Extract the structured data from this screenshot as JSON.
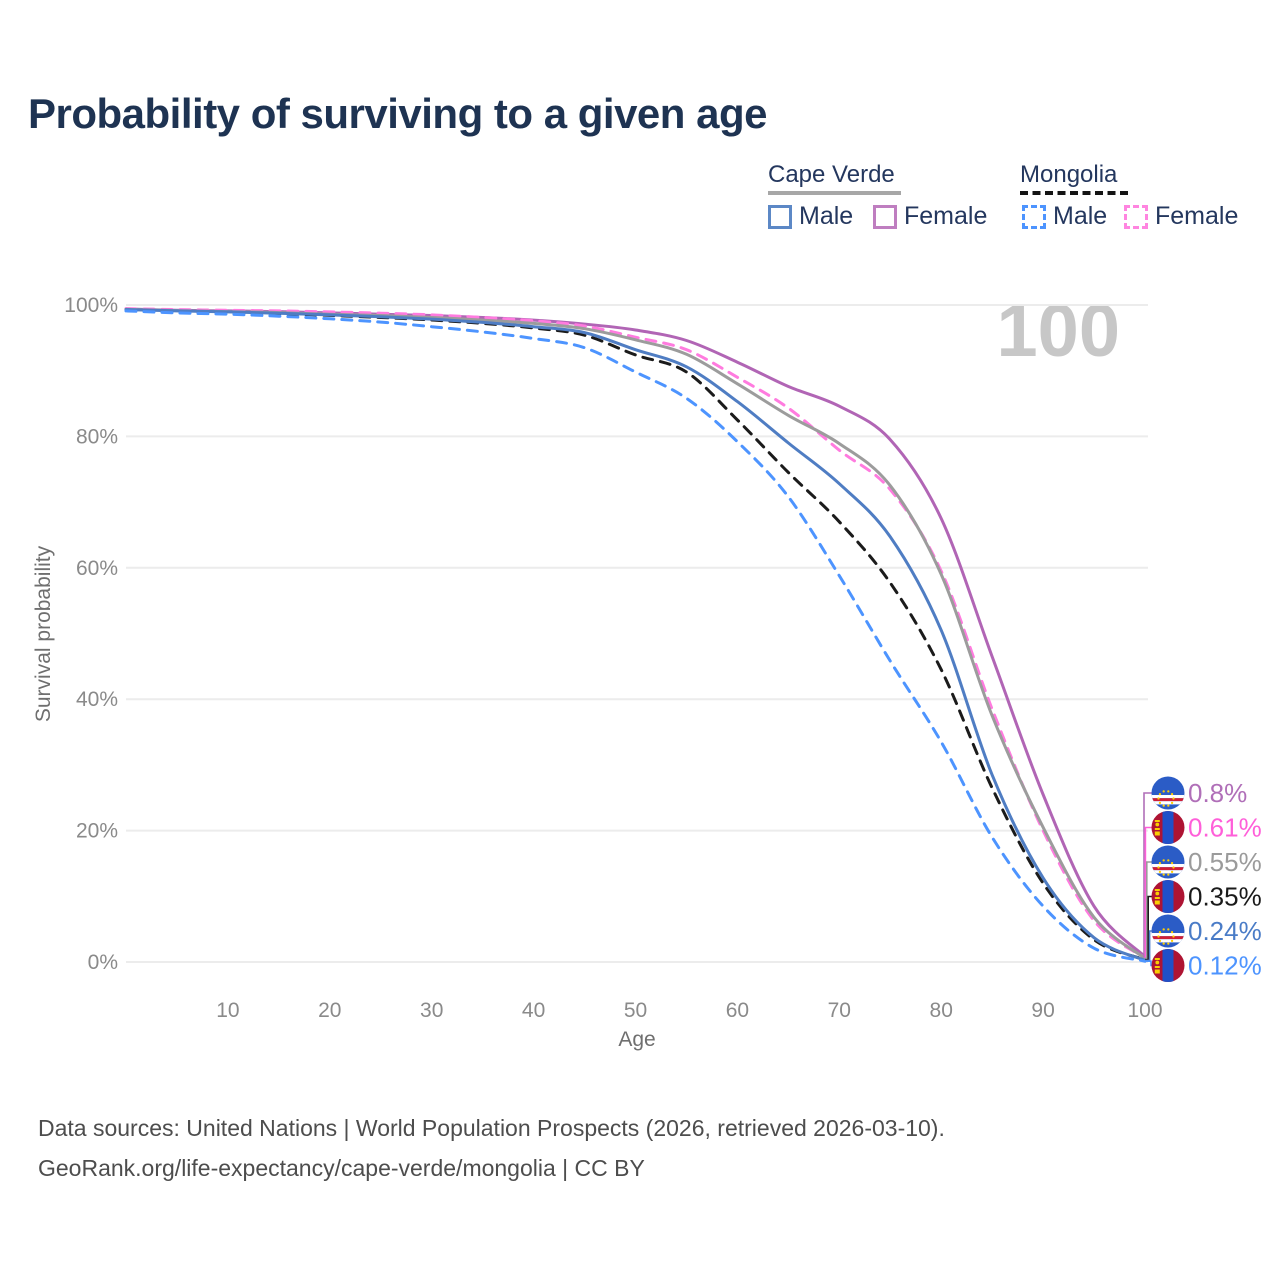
{
  "page": {
    "title": "Probability of surviving to a given age"
  },
  "watermark": "100",
  "legend": {
    "cape_verde": {
      "title": "Cape Verde",
      "style": "solid",
      "underline_color": "#a7a7a7",
      "male_label": "Male",
      "female_label": "Female",
      "male_color": "#5c88c6",
      "female_color": "#bf7ec0"
    },
    "mongolia": {
      "title": "Mongolia",
      "style": "dashed",
      "underline_color": "#141414",
      "male_label": "Male",
      "female_label": "Female",
      "male_color": "#4d94ff",
      "female_color": "#ff85e0"
    }
  },
  "axes": {
    "x_title": "Age",
    "y_title": "Survival probability",
    "x_ticks": [
      {
        "label": "10",
        "value": 10
      },
      {
        "label": "20",
        "value": 20
      },
      {
        "label": "30",
        "value": 30
      },
      {
        "label": "40",
        "value": 40
      },
      {
        "label": "50",
        "value": 50
      },
      {
        "label": "60",
        "value": 60
      },
      {
        "label": "70",
        "value": 70
      },
      {
        "label": "80",
        "value": 80
      },
      {
        "label": "90",
        "value": 90
      },
      {
        "label": "100",
        "value": 100
      }
    ],
    "y_ticks": [
      {
        "label": "0%",
        "value": 0
      },
      {
        "label": "20%",
        "value": 20
      },
      {
        "label": "40%",
        "value": 40
      },
      {
        "label": "60%",
        "value": 60
      },
      {
        "label": "80%",
        "value": 80
      },
      {
        "label": "100%",
        "value": 100
      }
    ]
  },
  "chart_data": {
    "type": "line",
    "title": "Probability of surviving to a given age",
    "xlabel": "Age",
    "ylabel": "Survival probability",
    "xlim": [
      0,
      100
    ],
    "ylim": [
      0,
      100
    ],
    "grid": true,
    "legend_position": "top-right",
    "x": [
      0,
      5,
      10,
      15,
      20,
      25,
      30,
      35,
      40,
      45,
      50,
      55,
      60,
      65,
      70,
      75,
      80,
      85,
      90,
      95,
      100
    ],
    "series": [
      {
        "name": "Cape Verde Female",
        "country": "Cape Verde",
        "sex": "Female",
        "color": "#b165b5",
        "label_color": "#b06fb8",
        "dash": "solid",
        "flag": "cape-verde",
        "end_label": "0.8%",
        "values": [
          99.4,
          99.2,
          99.1,
          99.0,
          98.8,
          98.6,
          98.4,
          98.1,
          97.7,
          97.1,
          96.2,
          94.6,
          91.3,
          87.6,
          84.6,
          79.5,
          67.5,
          46.5,
          25.5,
          8.5,
          0.8
        ]
      },
      {
        "name": "Mongolia Female",
        "country": "Mongolia",
        "sex": "Female",
        "color": "#ff7bdf",
        "label_color": "#ff5fd9",
        "dash": "dashed",
        "flag": "mongolia",
        "end_label": "0.61%",
        "values": [
          99.45,
          99.3,
          99.2,
          99.1,
          98.95,
          98.75,
          98.5,
          98.1,
          97.6,
          96.8,
          95.1,
          93.2,
          89.0,
          84.3,
          77.9,
          71.9,
          59.5,
          38.5,
          20.0,
          6.3,
          0.61
        ]
      },
      {
        "name": "Cape Verde Both sexes",
        "country": "Cape Verde",
        "sex": "Both sexes",
        "color": "#9c9c9c",
        "label_color": "#9b9b9b",
        "dash": "solid",
        "flag": "cape-verde",
        "end_label": "0.55%",
        "values": [
          99.35,
          99.15,
          99.0,
          98.85,
          98.6,
          98.4,
          98.1,
          97.7,
          97.2,
          96.4,
          94.7,
          92.5,
          88.0,
          83.2,
          78.9,
          72.5,
          59.0,
          37.5,
          20.5,
          6.8,
          0.55
        ]
      },
      {
        "name": "Mongolia Both sexes",
        "country": "Mongolia",
        "sex": "Both sexes",
        "color": "#1b1b1b",
        "label_color": "#1a1a1a",
        "dash": "dashed",
        "flag": "mongolia",
        "end_label": "0.35%",
        "values": [
          99.25,
          99.05,
          98.88,
          98.68,
          98.42,
          98.1,
          97.72,
          97.2,
          96.5,
          95.4,
          92.4,
          89.8,
          82.5,
          74.5,
          67.0,
          57.7,
          44.5,
          26.5,
          12.0,
          3.4,
          0.35
        ]
      },
      {
        "name": "Cape Verde Male",
        "country": "Cape Verde",
        "sex": "Male",
        "color": "#4f7dc3",
        "label_color": "#4a7cc7",
        "dash": "solid",
        "flag": "cape-verde",
        "end_label": "0.24%",
        "values": [
          99.3,
          99.1,
          98.95,
          98.75,
          98.5,
          98.2,
          97.85,
          97.35,
          96.7,
          95.8,
          93.2,
          90.6,
          85.3,
          79.0,
          72.8,
          64.7,
          50.5,
          28.5,
          12.8,
          3.7,
          0.24
        ]
      },
      {
        "name": "Mongolia Male",
        "country": "Mongolia",
        "sex": "Male",
        "color": "#4d94ff",
        "label_color": "#4d94ff",
        "dash": "dashed",
        "flag": "mongolia",
        "end_label": "0.12%",
        "values": [
          99.1,
          98.8,
          98.6,
          98.3,
          97.9,
          97.4,
          96.7,
          95.9,
          94.9,
          93.5,
          89.8,
          85.8,
          79.2,
          70.8,
          58.8,
          45.8,
          33.5,
          19.0,
          8.5,
          2.1,
          0.12
        ]
      }
    ]
  },
  "flag_colors": {
    "cape_verde": {
      "blue": "#2b5cc6",
      "red": "#cf1f36",
      "white": "#ffffff",
      "stars": "#ffce00"
    },
    "mongolia": {
      "red": "#ae1433",
      "blue": "#2050c8",
      "soyombo": "#f9cf02"
    }
  },
  "footer": {
    "line1": "Data sources: United Nations | World Population Prospects (2026, retrieved 2026-03-10).",
    "line2": "GeoRank.org/life-expectancy/cape-verde/mongolia | CC BY"
  }
}
